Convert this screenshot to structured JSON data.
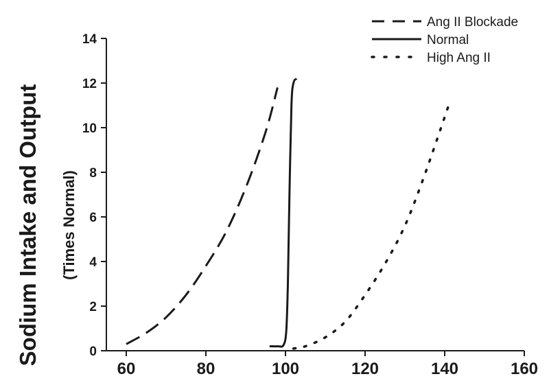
{
  "chart_data": {
    "type": "line",
    "title": "",
    "xlabel": "",
    "ylabel": "Sodium Intake and Output",
    "ylabel_sub": "(Times Normal)",
    "xlim": [
      55,
      160
    ],
    "ylim": [
      0,
      14
    ],
    "x_ticks": [
      60,
      80,
      100,
      120,
      140,
      160
    ],
    "y_ticks": [
      0,
      2,
      4,
      6,
      8,
      10,
      12,
      14
    ],
    "grid": false,
    "legend_position": "top-right",
    "series": [
      {
        "name": "Ang II Blockade",
        "style": "dashed",
        "color": "#1a1a1a",
        "points": [
          [
            60,
            0.3
          ],
          [
            65,
            0.8
          ],
          [
            70,
            1.5
          ],
          [
            75,
            2.5
          ],
          [
            80,
            3.8
          ],
          [
            85,
            5.3
          ],
          [
            90,
            7.3
          ],
          [
            95,
            9.8
          ],
          [
            98,
            11.8
          ]
        ]
      },
      {
        "name": "Normal",
        "style": "solid",
        "color": "#1a1a1a",
        "points": [
          [
            96,
            0.2
          ],
          [
            98,
            0.2
          ],
          [
            99.5,
            0.25
          ],
          [
            100.2,
            0.9
          ],
          [
            100.6,
            3
          ],
          [
            101,
            7
          ],
          [
            101.5,
            11
          ],
          [
            102,
            12
          ],
          [
            102.8,
            12.2
          ]
        ]
      },
      {
        "name": "High Ang II",
        "style": "dotted",
        "color": "#1a1a1a",
        "points": [
          [
            102,
            0.1
          ],
          [
            105,
            0.2
          ],
          [
            110,
            0.6
          ],
          [
            115,
            1.3
          ],
          [
            120,
            2.5
          ],
          [
            125,
            3.9
          ],
          [
            130,
            5.6
          ],
          [
            135,
            7.9
          ],
          [
            141,
            11
          ]
        ]
      }
    ]
  }
}
